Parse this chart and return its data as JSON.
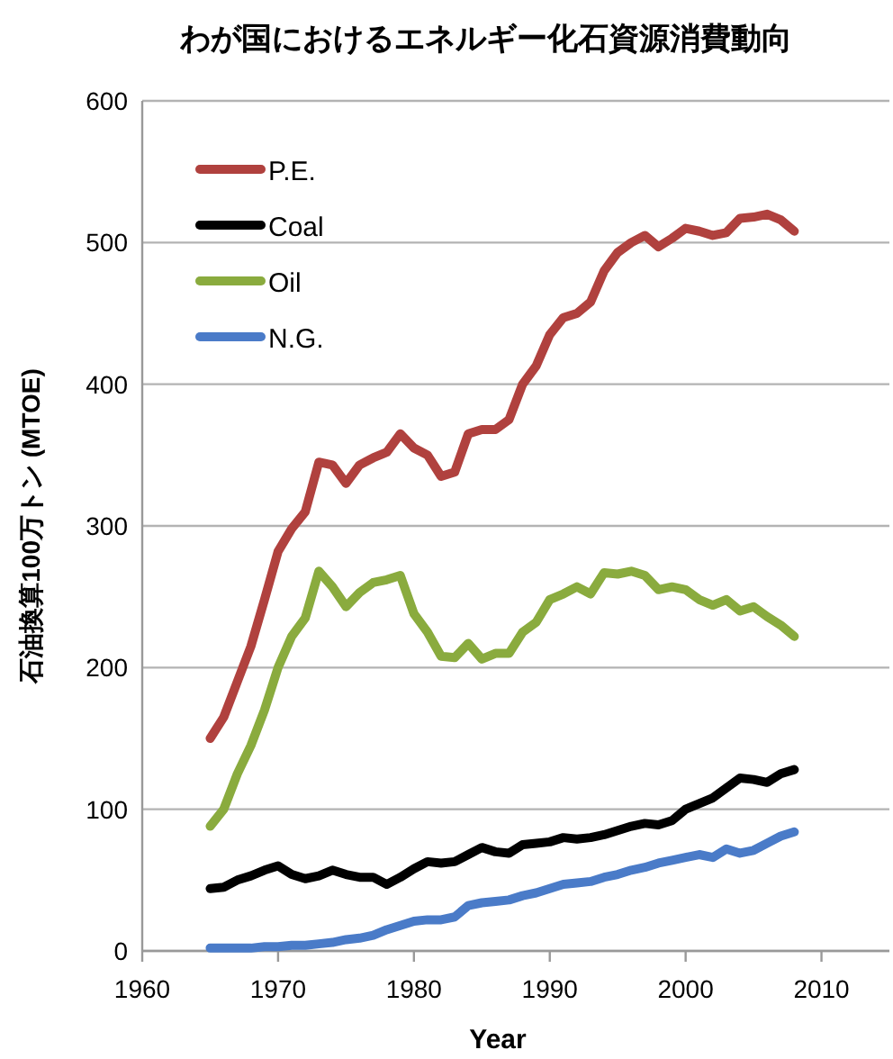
{
  "chart_data": {
    "type": "line",
    "title": "わが国におけるエネルギー化石資源消費動向",
    "xlabel": "Year",
    "ylabel": "石油換算100万トン (MTOE)",
    "x": [
      1965,
      1966,
      1967,
      1968,
      1969,
      1970,
      1971,
      1972,
      1973,
      1974,
      1975,
      1976,
      1977,
      1978,
      1979,
      1980,
      1981,
      1982,
      1983,
      1984,
      1985,
      1986,
      1987,
      1988,
      1989,
      1990,
      1991,
      1992,
      1993,
      1994,
      1995,
      1996,
      1997,
      1998,
      1999,
      2000,
      2001,
      2002,
      2003,
      2004,
      2005,
      2006,
      2007,
      2008
    ],
    "series": [
      {
        "name": "P.E.",
        "color": "#b0413e",
        "values": [
          150,
          165,
          190,
          215,
          248,
          282,
          298,
          310,
          345,
          343,
          330,
          343,
          348,
          352,
          365,
          355,
          350,
          335,
          338,
          365,
          368,
          368,
          375,
          400,
          413,
          435,
          447,
          450,
          458,
          480,
          493,
          500,
          505,
          497,
          503,
          510,
          508,
          505,
          507,
          517,
          518,
          520,
          516,
          508
        ]
      },
      {
        "name": "Coal",
        "color": "#000000",
        "values": [
          44,
          45,
          50,
          53,
          57,
          60,
          54,
          51,
          53,
          57,
          54,
          52,
          52,
          47,
          52,
          58,
          63,
          62,
          63,
          68,
          73,
          70,
          69,
          75,
          76,
          77,
          80,
          79,
          80,
          82,
          85,
          88,
          90,
          89,
          92,
          100,
          104,
          108,
          115,
          122,
          121,
          119,
          125,
          128
        ]
      },
      {
        "name": "Oil",
        "color": "#8aab3e",
        "values": [
          88,
          100,
          125,
          145,
          170,
          200,
          222,
          235,
          268,
          257,
          243,
          253,
          260,
          262,
          265,
          238,
          225,
          208,
          207,
          217,
          206,
          210,
          210,
          225,
          232,
          248,
          252,
          257,
          252,
          267,
          266,
          268,
          265,
          255,
          257,
          255,
          248,
          244,
          248,
          240,
          243,
          236,
          230,
          222
        ]
      },
      {
        "name": "N.G.",
        "color": "#4a7bc8",
        "values": [
          2,
          2,
          2,
          2,
          3,
          3,
          4,
          4,
          5,
          6,
          8,
          9,
          11,
          15,
          18,
          21,
          22,
          22,
          24,
          32,
          34,
          35,
          36,
          39,
          41,
          44,
          47,
          48,
          49,
          52,
          54,
          57,
          59,
          62,
          64,
          66,
          68,
          66,
          72,
          69,
          71,
          76,
          81,
          84
        ]
      }
    ],
    "xlim": [
      1960,
      2015
    ],
    "xticks": [
      1960,
      1970,
      1980,
      1990,
      2000,
      2010
    ],
    "ylim": [
      0,
      600
    ],
    "yticks": [
      0,
      100,
      200,
      300,
      400,
      500,
      600
    ],
    "grid": "y",
    "legend": "top left",
    "line_style": "solid",
    "marker": "none"
  }
}
